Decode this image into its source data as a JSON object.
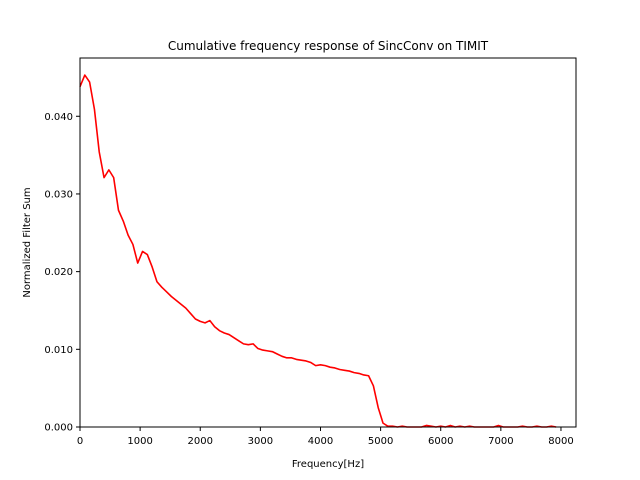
{
  "chart_data": {
    "type": "line",
    "title": "Cumulative frequency response of SincConv on TIMIT",
    "xlabel": "Frequency[Hz]",
    "ylabel": "Normalized Filter Sum",
    "xlim": [
      0,
      8250
    ],
    "ylim": [
      0,
      0.0475
    ],
    "xticks": [
      0,
      1000,
      2000,
      3000,
      4000,
      5000,
      6000,
      7000,
      8000
    ],
    "xtick_labels": [
      "0",
      "1000",
      "2000",
      "3000",
      "4000",
      "5000",
      "6000",
      "7000",
      "8000"
    ],
    "yticks": [
      0,
      0.01,
      0.02,
      0.03,
      0.04
    ],
    "ytick_labels": [
      "0.000",
      "0.010",
      "0.020",
      "0.030",
      "0.040"
    ],
    "grid": false,
    "series": [
      {
        "color": "#ff0000",
        "x": [
          0,
          80,
          160,
          240,
          320,
          400,
          480,
          560,
          640,
          720,
          800,
          880,
          960,
          1040,
          1120,
          1200,
          1280,
          1360,
          1440,
          1520,
          1600,
          1680,
          1760,
          1840,
          1920,
          2000,
          2080,
          2160,
          2240,
          2320,
          2400,
          2480,
          2560,
          2640,
          2720,
          2800,
          2880,
          2960,
          3040,
          3120,
          3200,
          3280,
          3360,
          3440,
          3520,
          3600,
          3680,
          3760,
          3840,
          3920,
          4000,
          4080,
          4160,
          4240,
          4320,
          4400,
          4480,
          4560,
          4640,
          4720,
          4800,
          4880,
          4960,
          5040,
          5120,
          5200,
          5280,
          5360,
          5440,
          5520,
          5600,
          5680,
          5760,
          5840,
          5920,
          6000,
          6080,
          6160,
          6240,
          6320,
          6400,
          6480,
          6560,
          6640,
          6720,
          6800,
          6880,
          6960,
          7040,
          7120,
          7200,
          7280,
          7360,
          7440,
          7520,
          7600,
          7680,
          7760,
          7840,
          7920
        ],
        "y": [
          0.0438,
          0.0453,
          0.0444,
          0.0409,
          0.0354,
          0.0321,
          0.0331,
          0.0321,
          0.0279,
          0.0265,
          0.0247,
          0.0235,
          0.0211,
          0.0226,
          0.0222,
          0.0206,
          0.0187,
          0.018,
          0.0174,
          0.0168,
          0.0163,
          0.0158,
          0.0153,
          0.0146,
          0.0139,
          0.0136,
          0.0134,
          0.0137,
          0.0129,
          0.0124,
          0.0121,
          0.0119,
          0.0115,
          0.0111,
          0.0107,
          0.0106,
          0.0107,
          0.0101,
          0.0099,
          0.0098,
          0.0097,
          0.0094,
          0.0091,
          0.0089,
          0.0089,
          0.0087,
          0.0086,
          0.0085,
          0.0083,
          0.0079,
          0.008,
          0.0079,
          0.0077,
          0.0076,
          0.0074,
          0.0073,
          0.0072,
          0.007,
          0.0069,
          0.0067,
          0.0066,
          0.0053,
          0.0025,
          0.0005,
          0.0001,
          0.0001,
          0.0,
          0.0001,
          0.0,
          0.0,
          0.0,
          0.0,
          0.0002,
          0.0001,
          0.0,
          0.0001,
          0.0,
          0.0002,
          0.0,
          0.0001,
          0.0,
          0.0001,
          0.0,
          0.0,
          0.0,
          0.0,
          0.0,
          0.0002,
          0.0,
          0.0,
          0.0,
          0.0,
          0.0001,
          0.0,
          0.0,
          0.0001,
          0.0,
          0.0,
          0.0001,
          0.0
        ]
      }
    ]
  }
}
